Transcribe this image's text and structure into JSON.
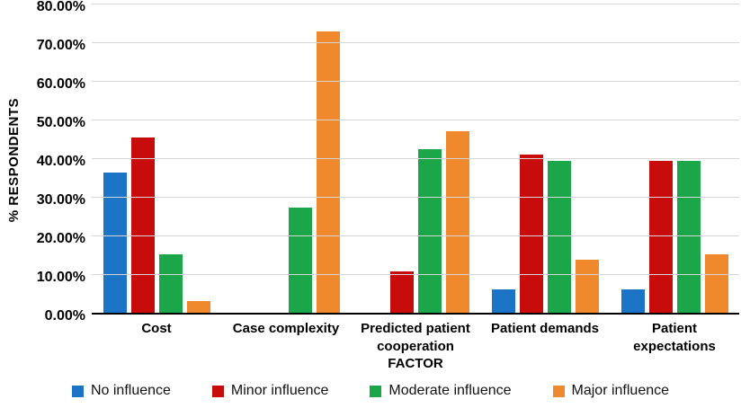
{
  "y_axis": {
    "title": "% RESPONDENTS",
    "ticks": [
      {
        "label": "80.00%",
        "value": 80
      },
      {
        "label": "70.00%",
        "value": 70
      },
      {
        "label": "60.00%",
        "value": 60
      },
      {
        "label": "50.00%",
        "value": 50
      },
      {
        "label": "40.00%",
        "value": 40
      },
      {
        "label": "30.00%",
        "value": 30
      },
      {
        "label": "20.00%",
        "value": 20
      },
      {
        "label": "10.00%",
        "value": 10
      },
      {
        "label": "0.00%",
        "value": 0
      }
    ]
  },
  "x_axis": {
    "title": "FACTOR"
  },
  "chart_data": {
    "type": "bar",
    "categories": [
      "Cost",
      "Case complexity",
      "Predicted patient cooperation",
      "Patient demands",
      "Patient expectations"
    ],
    "series": [
      {
        "name": "No influence",
        "color": "#1b74c5",
        "values": [
          36.36,
          0,
          0,
          6.06,
          6.06
        ]
      },
      {
        "name": "Minor influence",
        "color": "#c80b0b",
        "values": [
          45.45,
          0,
          10.61,
          40.91,
          39.39
        ]
      },
      {
        "name": "Moderate influence",
        "color": "#1ca64a",
        "values": [
          15.15,
          27.27,
          42.42,
          39.39,
          39.39
        ]
      },
      {
        "name": "Major influence",
        "color": "#f0882d",
        "values": [
          3.03,
          72.73,
          46.97,
          13.64,
          15.15
        ]
      }
    ],
    "title": "",
    "xlabel": "FACTOR",
    "ylabel": "% RESPONDENTS",
    "ylim": [
      0,
      80
    ],
    "grid": true,
    "legend_position": "bottom",
    "gridline_color": "#d6d6d6",
    "axis_line_color": "#000000"
  }
}
